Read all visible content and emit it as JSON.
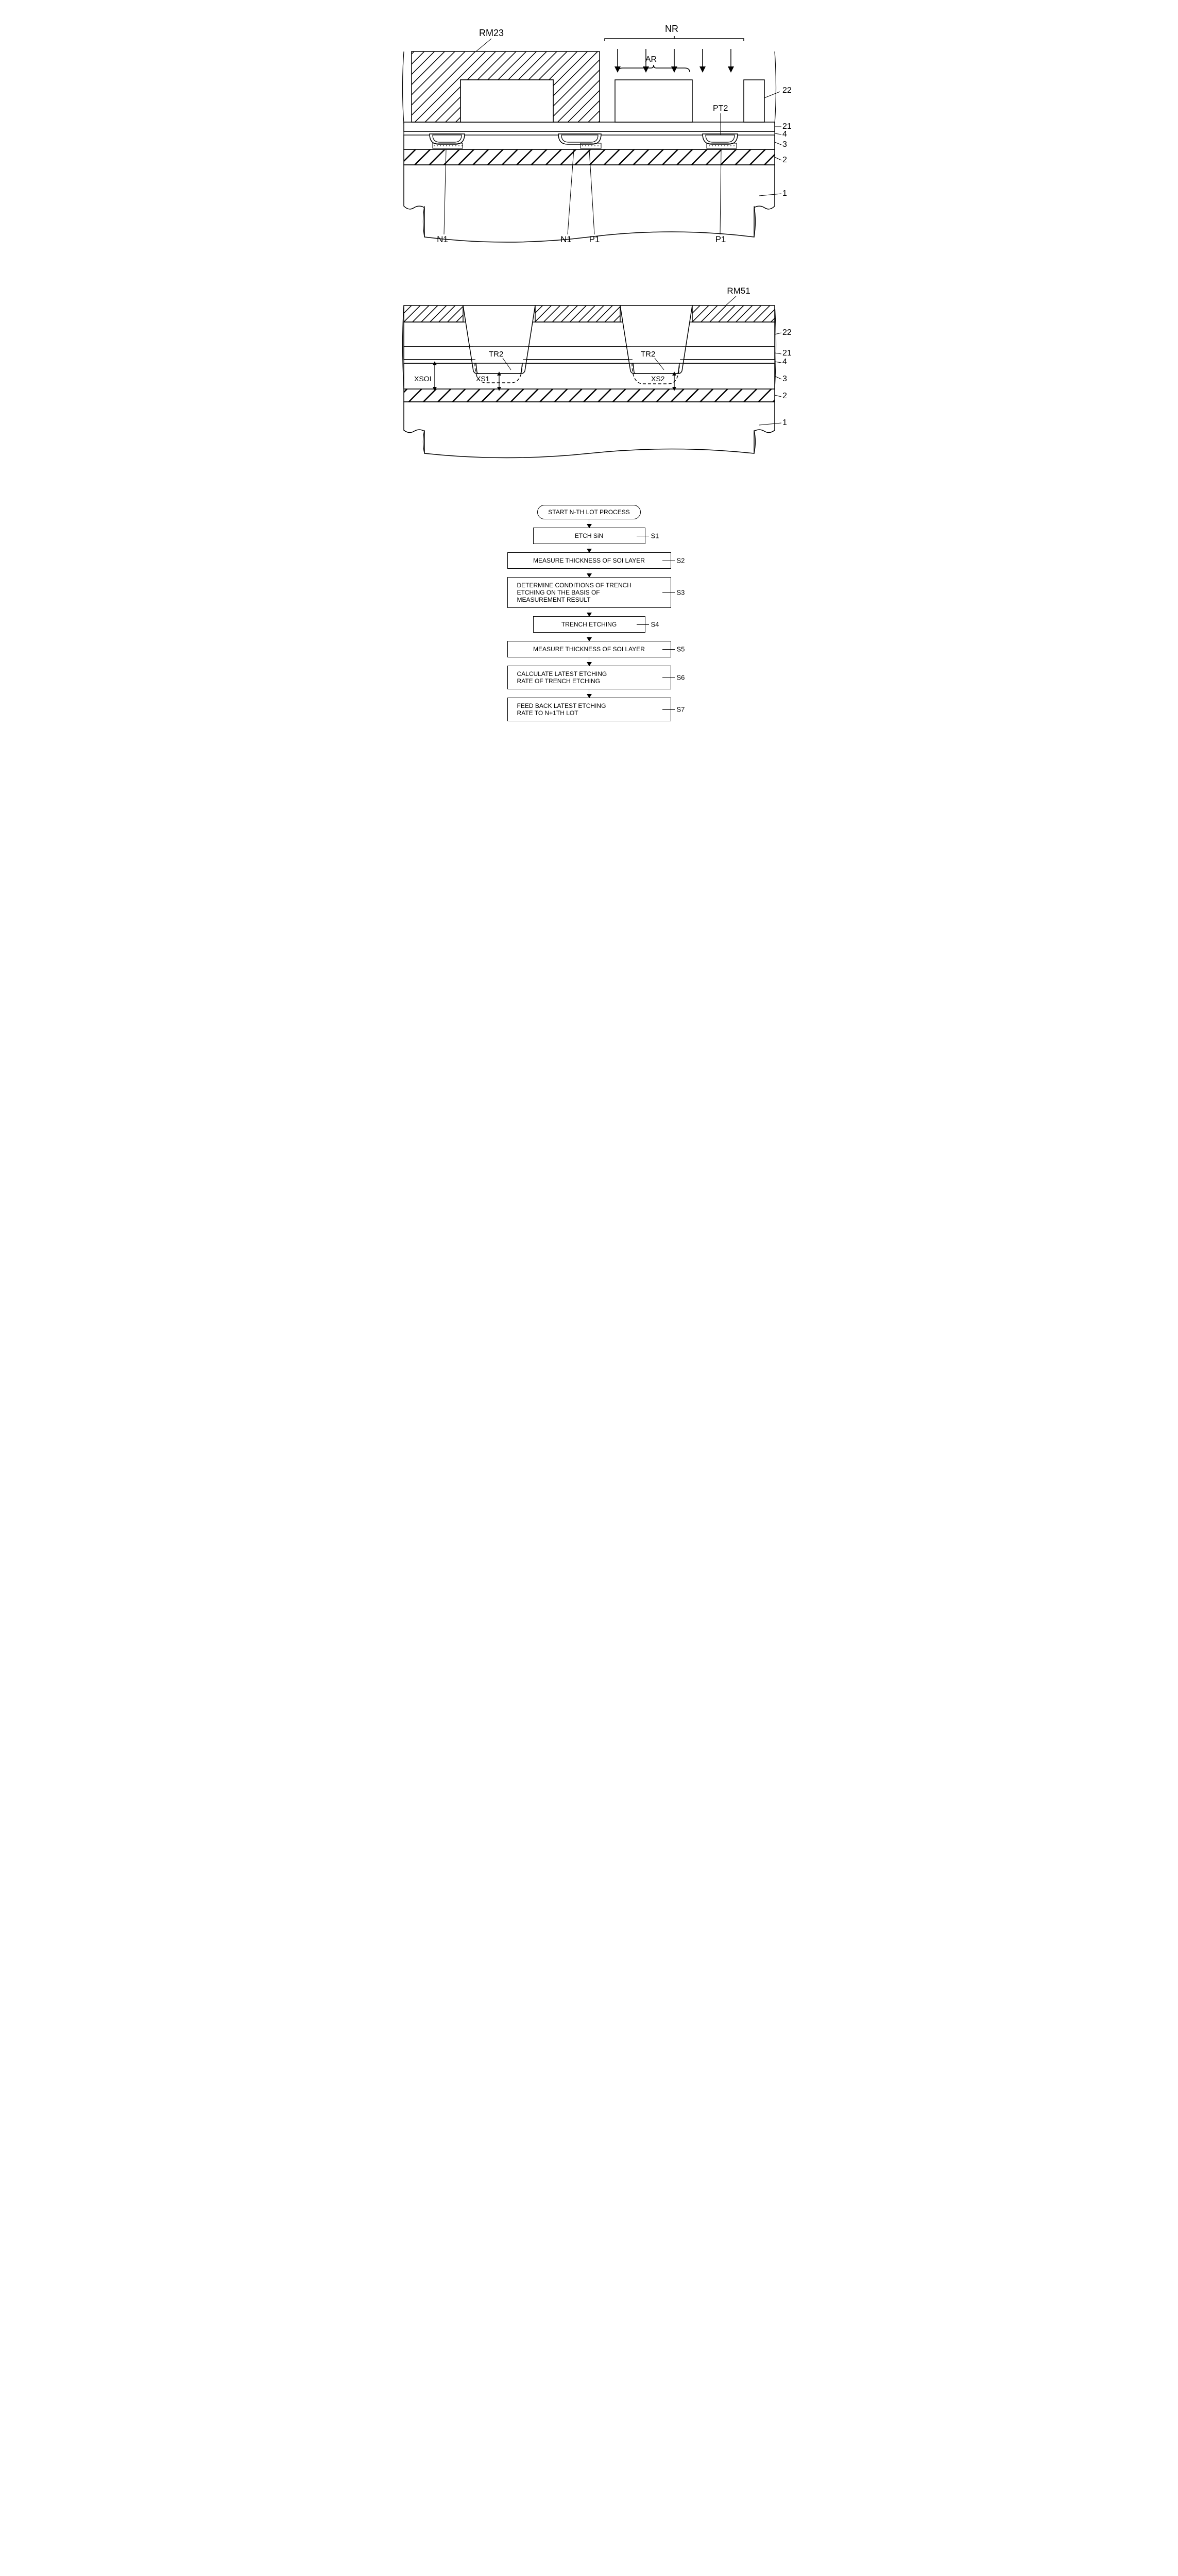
{
  "figure1": {
    "labels": {
      "RM23": "RM23",
      "NR": "NR",
      "AR": "AR",
      "PT2": "PT2",
      "N1_left": "N1",
      "N1_mid": "N1",
      "P1_mid": "P1",
      "P1_right": "P1",
      "layer22": "22",
      "layer21": "21",
      "layer4": "4",
      "layer3": "3",
      "layer2": "2",
      "layer1": "1"
    },
    "colors": {
      "stroke": "#000000",
      "background": "#ffffff",
      "hatch": "#000000",
      "dotted": "#000000"
    }
  },
  "figure2": {
    "labels": {
      "RM51": "RM51",
      "TR2_left": "TR2",
      "TR2_right": "TR2",
      "XSOI": "XSOI",
      "XS1": "XS1",
      "XS2": "XS2",
      "layer22": "22",
      "layer21": "21",
      "layer4": "4",
      "layer3": "3",
      "layer2": "2",
      "layer1": "1"
    },
    "colors": {
      "stroke": "#000000",
      "background": "#ffffff"
    }
  },
  "flowchart": {
    "start": "START N-TH LOT PROCESS",
    "steps": [
      {
        "id": "S1",
        "text": "ETCH SiN",
        "narrow": true
      },
      {
        "id": "S2",
        "text": "MEASURE THICKNESS OF SOI LAYER"
      },
      {
        "id": "S3",
        "text": "DETERMINE CONDITIONS OF TRENCH\nETCHING ON THE BASIS OF\nMEASUREMENT RESULT"
      },
      {
        "id": "S4",
        "text": "TRENCH ETCHING",
        "narrow": true
      },
      {
        "id": "S5",
        "text": "MEASURE THICKNESS OF SOI LAYER"
      },
      {
        "id": "S6",
        "text": "CALCULATE LATEST ETCHING\nRATE OF TRENCH ETCHING"
      },
      {
        "id": "S7",
        "text": "FEED BACK LATEST ETCHING\nRATE TO N+1TH LOT"
      }
    ]
  }
}
